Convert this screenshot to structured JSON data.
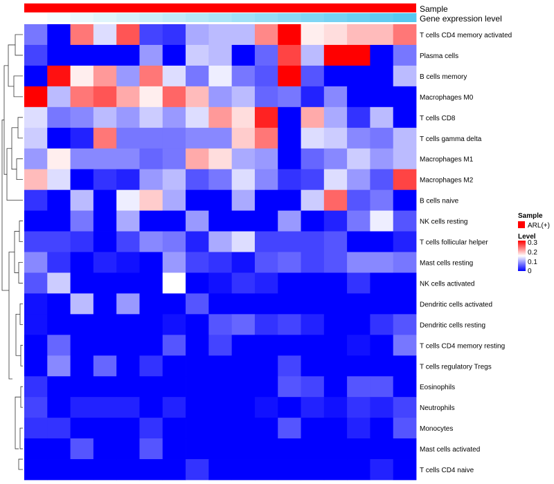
{
  "chart_data": {
    "type": "heatmap",
    "annotations": [
      {
        "name": "Sample",
        "color": "#ff0000"
      },
      {
        "name": "Gene expression level",
        "color_low": "#ffffff",
        "color_high": "#56c8f0"
      }
    ],
    "rows": [
      "T cells CD4 memory activated",
      "Plasma cells",
      "B cells memory",
      "Macrophages M0",
      "T cells CD8",
      "T cells gamma delta",
      "Macrophages M1",
      "Macrophages M2",
      "B cells naive",
      "NK cells resting",
      "T cells follicular helper",
      "Mast cells resting",
      "NK cells activated",
      "Dendritic cells activated",
      "Dendritic cells resting",
      "T cells CD4 memory resting",
      "T cells regulatory  Tregs",
      "Eosinophils",
      "Neutrophils",
      "Monocytes",
      "Mast cells activated",
      "T cells CD4 naive"
    ],
    "columns": 17,
    "values": [
      [
        0.07,
        0.0,
        0.23,
        0.13,
        0.25,
        0.04,
        0.03,
        0.1,
        0.11,
        0.11,
        0.22,
        0.3,
        0.16,
        0.17,
        0.19,
        0.19,
        0.23
      ],
      [
        0.04,
        0.0,
        0.0,
        0.0,
        0.0,
        0.09,
        0.0,
        0.12,
        0.11,
        0.0,
        0.06,
        0.26,
        0.11,
        0.3,
        0.3,
        0.0,
        0.07
      ],
      [
        0.0,
        0.29,
        0.16,
        0.21,
        0.09,
        0.23,
        0.13,
        0.07,
        0.14,
        0.07,
        0.05,
        0.3,
        0.05,
        0.0,
        0.0,
        0.0,
        0.11
      ],
      [
        0.3,
        0.11,
        0.23,
        0.25,
        0.2,
        0.16,
        0.24,
        0.19,
        0.09,
        0.11,
        0.06,
        0.07,
        0.02,
        0.08,
        0.0,
        0.0,
        0.0
      ],
      [
        0.13,
        0.07,
        0.08,
        0.11,
        0.09,
        0.12,
        0.09,
        0.13,
        0.21,
        0.17,
        0.28,
        0.0,
        0.2,
        0.1,
        0.03,
        0.11,
        0.0
      ],
      [
        0.12,
        0.0,
        0.02,
        0.23,
        0.07,
        0.07,
        0.07,
        0.08,
        0.08,
        0.18,
        0.23,
        0.0,
        0.13,
        0.12,
        0.08,
        0.07,
        0.11
      ],
      [
        0.09,
        0.16,
        0.08,
        0.08,
        0.08,
        0.06,
        0.07,
        0.2,
        0.17,
        0.1,
        0.09,
        0.0,
        0.06,
        0.08,
        0.12,
        0.09,
        0.11
      ],
      [
        0.19,
        0.13,
        0.0,
        0.03,
        0.02,
        0.09,
        0.11,
        0.05,
        0.07,
        0.13,
        0.08,
        0.03,
        0.04,
        0.13,
        0.09,
        0.05,
        0.26
      ],
      [
        0.03,
        0.0,
        0.11,
        0.0,
        0.14,
        0.18,
        0.1,
        0.0,
        0.0,
        0.1,
        0.0,
        0.0,
        0.12,
        0.24,
        0.05,
        0.07,
        0.0
      ],
      [
        0.0,
        0.0,
        0.07,
        0.0,
        0.1,
        0.0,
        0.0,
        0.09,
        0.0,
        0.0,
        0.0,
        0.09,
        0.0,
        0.02,
        0.07,
        0.14,
        0.05
      ],
      [
        0.04,
        0.04,
        0.03,
        0.0,
        0.04,
        0.08,
        0.07,
        0.02,
        0.1,
        0.13,
        0.04,
        0.04,
        0.04,
        0.05,
        0.0,
        0.0,
        0.02
      ],
      [
        0.08,
        0.03,
        0.0,
        0.02,
        0.01,
        0.0,
        0.09,
        0.04,
        0.03,
        0.01,
        0.05,
        0.06,
        0.04,
        0.05,
        0.08,
        0.08,
        0.07
      ],
      [
        0.05,
        0.12,
        0.0,
        0.0,
        0.0,
        0.0,
        0.15,
        0.0,
        0.01,
        0.03,
        0.02,
        0.0,
        0.0,
        0.0,
        0.03,
        0.0,
        0.0
      ],
      [
        0.01,
        0.0,
        0.11,
        0.0,
        0.09,
        0.0,
        0.0,
        0.05,
        0.0,
        0.0,
        0.0,
        0.0,
        0.0,
        0.0,
        0.0,
        0.0,
        0.0
      ],
      [
        0.01,
        0.0,
        0.0,
        0.0,
        0.0,
        0.0,
        0.01,
        0.0,
        0.05,
        0.06,
        0.03,
        0.04,
        0.02,
        0.0,
        0.0,
        0.03,
        0.05
      ],
      [
        0.0,
        0.06,
        0.0,
        0.0,
        0.0,
        0.0,
        0.05,
        0.0,
        0.04,
        0.0,
        0.0,
        0.0,
        0.0,
        0.0,
        0.01,
        0.0,
        0.07
      ],
      [
        0.0,
        0.08,
        0.0,
        0.06,
        0.0,
        0.03,
        0.0,
        0.0,
        0.0,
        0.0,
        0.0,
        0.04,
        0.0,
        0.0,
        0.0,
        0.0,
        0.0
      ],
      [
        0.03,
        0.0,
        0.0,
        0.0,
        0.0,
        0.0,
        0.0,
        0.0,
        0.0,
        0.0,
        0.0,
        0.05,
        0.04,
        0.0,
        0.05,
        0.05,
        0.0
      ],
      [
        0.04,
        0.0,
        0.02,
        0.02,
        0.02,
        0.0,
        0.02,
        0.0,
        0.0,
        0.0,
        0.01,
        0.0,
        0.02,
        0.01,
        0.03,
        0.02,
        0.04
      ],
      [
        0.03,
        0.03,
        0.0,
        0.0,
        0.0,
        0.03,
        0.0,
        0.0,
        0.0,
        0.0,
        0.0,
        0.05,
        0.0,
        0.0,
        0.02,
        0.0,
        0.05
      ],
      [
        0.0,
        0.0,
        0.05,
        0.0,
        0.0,
        0.05,
        0.0,
        0.0,
        0.0,
        0.0,
        0.0,
        0.0,
        0.0,
        0.0,
        0.0,
        0.0,
        0.0
      ],
      [
        0.0,
        0.0,
        0.0,
        0.0,
        0.0,
        0.0,
        0.0,
        0.03,
        0.0,
        0.0,
        0.0,
        0.0,
        0.0,
        0.0,
        0.0,
        0.02,
        0.0
      ]
    ],
    "legend_sample": {
      "title": "Sample",
      "entries": [
        {
          "label": "ARL(+)",
          "color": "#ff0000"
        }
      ]
    },
    "legend_level": {
      "title": "Level",
      "ticks": [
        "0.3",
        "0.2",
        "0.1",
        "0"
      ],
      "range": [
        0,
        0.3
      ],
      "colors": [
        "#0000ff",
        "#ffffff",
        "#ff0000"
      ]
    }
  }
}
